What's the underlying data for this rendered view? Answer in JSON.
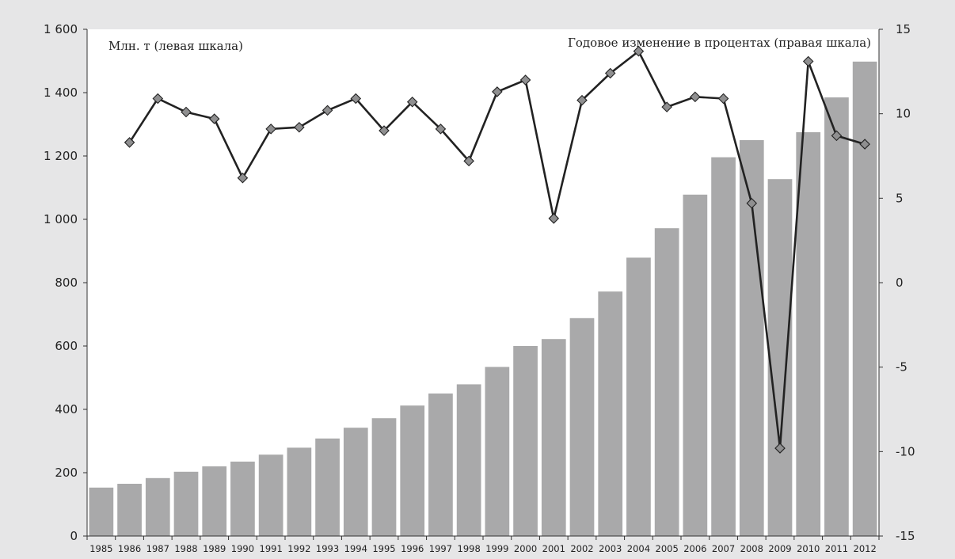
{
  "chart_data": {
    "type": "bar",
    "annotations": {
      "left": "Млн. т (левая шкала)",
      "right": "Годовое изменение в процентах (правая шкала)"
    },
    "categories": [
      "1985",
      "1986",
      "1987",
      "1988",
      "1989",
      "1990",
      "1991",
      "1992",
      "1993",
      "1994",
      "1995",
      "1996",
      "1997",
      "1998",
      "1999",
      "2000",
      "2001",
      "2002",
      "2003",
      "2004",
      "2005",
      "2006",
      "2007",
      "2008",
      "2009",
      "2010",
      "2011",
      "2012"
    ],
    "y_left": {
      "range": [
        0,
        1600
      ],
      "ticks": [
        0,
        200,
        400,
        600,
        800,
        1000,
        1200,
        1400,
        1600
      ],
      "tick_labels": [
        "0",
        "200",
        "400",
        "600",
        "800",
        "1 000",
        "1 200",
        "1 400",
        "1 600"
      ]
    },
    "y_right": {
      "range": [
        -15,
        15
      ],
      "ticks": [
        -15,
        -10,
        -5,
        0,
        5,
        10,
        15
      ],
      "tick_labels": [
        "-15",
        "-10",
        "-5",
        "0",
        "5",
        "10",
        "15"
      ]
    },
    "grid": false,
    "series": [
      {
        "type": "bar",
        "axis": "left",
        "color": "#a9a9aa",
        "values": [
          153,
          165,
          183,
          203,
          220,
          235,
          257,
          279,
          308,
          342,
          372,
          412,
          450,
          479,
          534,
          600,
          622,
          688,
          772,
          879,
          972,
          1078,
          1196,
          1250,
          1127,
          1275,
          1385,
          1498
        ]
      },
      {
        "type": "line",
        "axis": "right",
        "color": "#222222",
        "marker_color": "#8f8f90",
        "values": [
          null,
          8.3,
          10.9,
          10.1,
          9.7,
          6.2,
          9.1,
          9.2,
          10.2,
          10.9,
          9.0,
          10.7,
          9.1,
          7.2,
          11.3,
          12.0,
          3.8,
          10.8,
          12.4,
          13.7,
          10.4,
          11.0,
          10.9,
          4.7,
          -9.8,
          13.1,
          8.7,
          8.2
        ]
      }
    ]
  }
}
